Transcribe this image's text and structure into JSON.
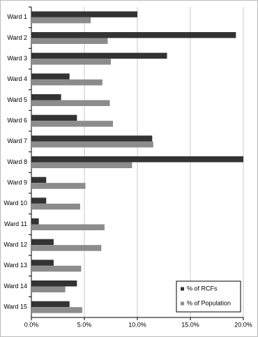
{
  "chart_data": {
    "type": "hbar",
    "categories": [
      "Ward 1",
      "Ward 2",
      "Ward 3",
      "Ward 4",
      "Ward 5",
      "Ward 6",
      "Ward 7",
      "Ward 8",
      "Ward 9",
      "Ward 10",
      "Ward 11",
      "Ward 12",
      "Ward 13",
      "Ward 14",
      "Ward 15"
    ],
    "series": [
      {
        "name": "% of RCFs",
        "color": "#333333",
        "values": [
          10.0,
          19.3,
          12.8,
          3.6,
          2.8,
          4.3,
          11.4,
          20.0,
          1.4,
          1.4,
          0.7,
          2.1,
          2.1,
          4.3,
          3.6
        ]
      },
      {
        "name": "% of Population",
        "color": "#8c8c8c",
        "values": [
          5.6,
          7.2,
          7.5,
          6.7,
          7.4,
          7.7,
          11.5,
          9.5,
          5.1,
          4.6,
          6.9,
          6.6,
          4.7,
          3.2,
          4.8
        ]
      }
    ],
    "xlim": [
      0,
      20
    ],
    "xticks": [
      {
        "value": 0,
        "label": "0.0%"
      },
      {
        "value": 5,
        "label": "5.0%"
      },
      {
        "value": 10,
        "label": "10.0%"
      },
      {
        "value": 15,
        "label": "15.0%"
      },
      {
        "value": 20,
        "label": "20.0%"
      }
    ],
    "grid": true,
    "legend": "lower right"
  }
}
